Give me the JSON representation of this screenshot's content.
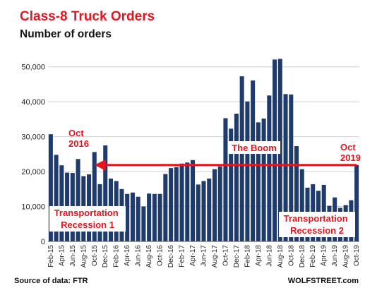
{
  "chart_data": {
    "type": "bar",
    "title": "Class-8 Truck Orders",
    "subtitle": "Number of orders",
    "ylim": [
      0,
      55000
    ],
    "yticks": [
      "0",
      "10,000",
      "20,000",
      "30,000",
      "40,000",
      "50,000"
    ],
    "ytick_values": [
      0,
      10000,
      20000,
      30000,
      40000,
      50000
    ],
    "grid": true,
    "categories": [
      "Feb-15",
      "Mar-15",
      "Apr-15",
      "May-15",
      "Jun-15",
      "Jul-15",
      "Aug-15",
      "Sep-15",
      "Oct-15",
      "Nov-15",
      "Dec-15",
      "Jan-16",
      "Feb-16",
      "Mar-16",
      "Apr-16",
      "May-16",
      "Jun-16",
      "Jul-16",
      "Aug-16",
      "Sep-16",
      "Oct-16",
      "Nov-16",
      "Dec-16",
      "Jan-17",
      "Feb-17",
      "Mar-17",
      "Apr-17",
      "May-17",
      "Jun-17",
      "Jul-17",
      "Aug-17",
      "Sep-17",
      "Oct-17",
      "Nov-17",
      "Dec-17",
      "Jan-18",
      "Feb-18",
      "Mar-18",
      "Apr-18",
      "May-18",
      "Jun-18",
      "Jul-18",
      "Aug-18",
      "Sep-18",
      "Oct-18",
      "Nov-18",
      "Dec-18",
      "Jan-19",
      "Feb-19",
      "Mar-19",
      "Apr-19",
      "May-19",
      "Jun-19",
      "Jul-19",
      "Aug-19",
      "Sep-19",
      "Oct-19"
    ],
    "xtick_labels": [
      "Feb-15",
      "Apr-15",
      "Jun-15",
      "Aug-15",
      "Oct-15",
      "Dec-15",
      "Feb-16",
      "Apr-16",
      "Jun-16",
      "Aug-16",
      "Oct-16",
      "Dec-16",
      "Feb-17",
      "Apr-17",
      "Jun-17",
      "Aug-17",
      "Oct-17",
      "Dec-17",
      "Feb-18",
      "Apr-18",
      "Jun-18",
      "Aug-18",
      "Oct-18",
      "Dec-18",
      "Feb-19",
      "Apr-19",
      "Jun-19",
      "Aug-19",
      "Oct-19"
    ],
    "values": [
      30700,
      24800,
      21800,
      19700,
      19600,
      23600,
      18700,
      19200,
      25600,
      16400,
      27500,
      18000,
      17300,
      15000,
      13600,
      14000,
      12800,
      10000,
      13700,
      13600,
      13600,
      19300,
      21000,
      21300,
      22300,
      22600,
      23300,
      16300,
      17300,
      18000,
      20700,
      21500,
      35300,
      32300,
      36600,
      47300,
      40100,
      46100,
      34100,
      35200,
      41800,
      52100,
      52300,
      42200,
      42100,
      27300,
      20700,
      15400,
      16400,
      14500,
      16200,
      10200,
      12600,
      9600,
      10400,
      11800,
      21900
    ],
    "bar_color": "#1f3b6e",
    "reference_line": {
      "value": 21900,
      "color": "#e8141f"
    },
    "annotations": [
      {
        "lines": [
          "Oct",
          "2016"
        ],
        "color": "#e8141f"
      },
      {
        "lines": [
          "The Boom"
        ],
        "color": "#e8141f"
      },
      {
        "lines": [
          "Oct",
          "2019"
        ],
        "color": "#e8141f"
      },
      {
        "lines": [
          "Transportation",
          "Recession 1"
        ],
        "color": "#e8141f"
      },
      {
        "lines": [
          "Transportation",
          "Recession 2"
        ],
        "color": "#e8141f"
      }
    ],
    "source": "Source of data: FTR",
    "watermark": "WOLFSTREET.com"
  },
  "colors": {
    "title": "#e8141f",
    "subtitle": "#111111",
    "grid": "#cfcfcf",
    "axis": "#555555"
  }
}
